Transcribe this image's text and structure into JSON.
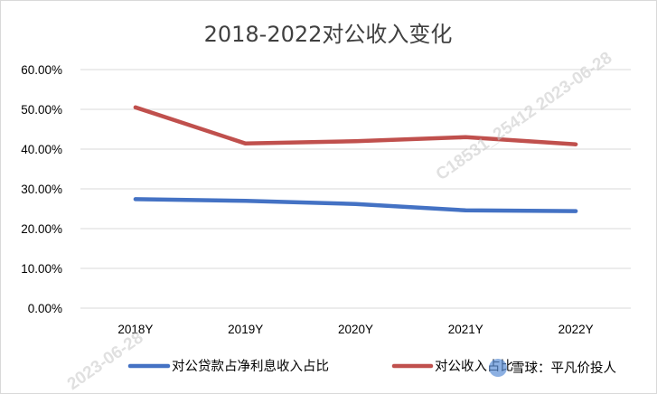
{
  "chart_data": {
    "type": "line",
    "title": "2018-2022对公收入变化",
    "categories": [
      "2018Y",
      "2019Y",
      "2020Y",
      "2021Y",
      "2022Y"
    ],
    "ylim": [
      0,
      0.6
    ],
    "yticks": [
      "0.00%",
      "10.00%",
      "20.00%",
      "30.00%",
      "40.00%",
      "50.00%",
      "60.00%"
    ],
    "grid": true,
    "legend_position": "bottom",
    "series": [
      {
        "name": "对公贷款占净利息收入占比",
        "color": "#4472c4",
        "values": [
          0.274,
          0.27,
          0.262,
          0.246,
          0.244
        ]
      },
      {
        "name": "对公收入占比",
        "color": "#c0504d",
        "values": [
          0.505,
          0.414,
          0.42,
          0.43,
          0.412
        ]
      }
    ]
  },
  "watermark": {
    "diagonal_text": "C18531_25412  2023-06-28",
    "corner_date": "2023-06-28",
    "brand": "雪球：平凡价投人"
  }
}
